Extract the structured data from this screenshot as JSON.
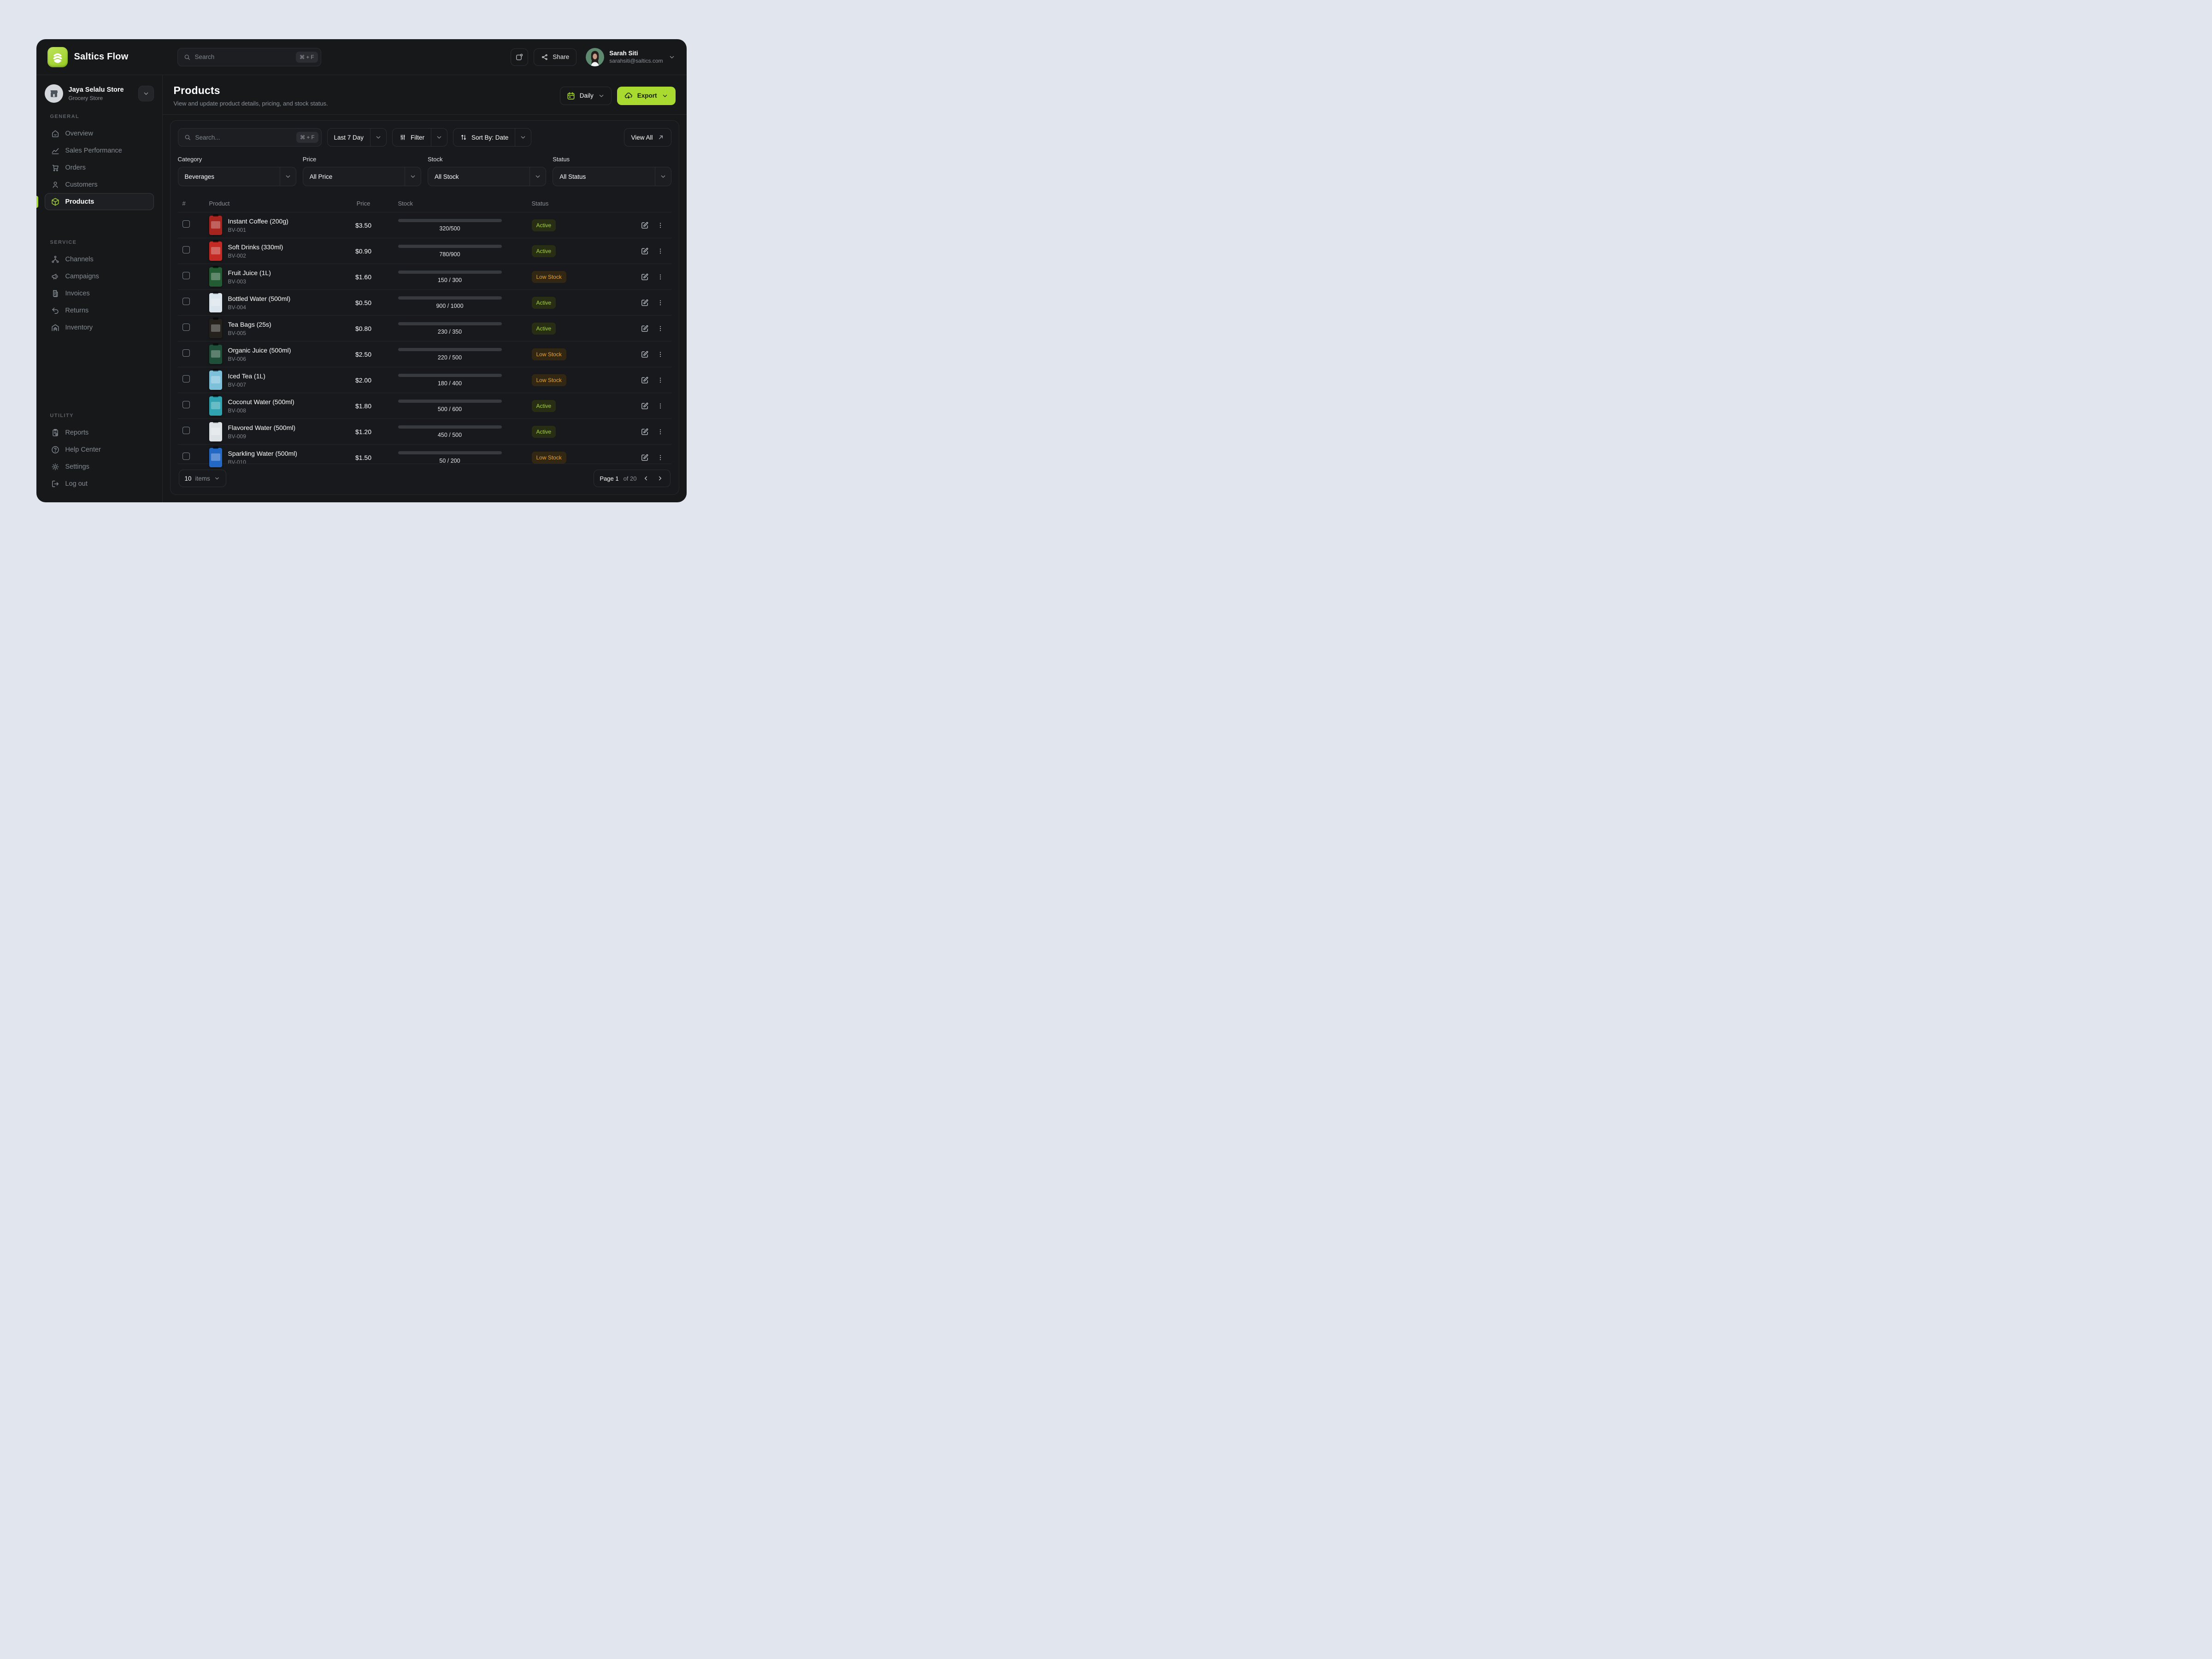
{
  "app": {
    "name": "Saltics Flow"
  },
  "topbar": {
    "search": {
      "placeholder": "Search",
      "shortcut": "⌘ + F"
    },
    "share_label": "Share",
    "user": {
      "name": "Sarah Siti",
      "email": "sarahsiti@saltics.com"
    }
  },
  "sidebar": {
    "store": {
      "name": "Jaya Selalu Store",
      "type": "Grocery Store"
    },
    "sections": [
      {
        "label": "GENERAL",
        "items": [
          {
            "label": "Overview",
            "icon": "home"
          },
          {
            "label": "Sales Performance",
            "icon": "chart"
          },
          {
            "label": "Orders",
            "icon": "cart"
          },
          {
            "label": "Customers",
            "icon": "users"
          },
          {
            "label": "Products",
            "icon": "cube",
            "active": true
          }
        ]
      },
      {
        "label": "SERVICE",
        "items": [
          {
            "label": "Channels",
            "icon": "network"
          },
          {
            "label": "Campaigns",
            "icon": "megaphone"
          },
          {
            "label": "Invoices",
            "icon": "receipt"
          },
          {
            "label": "Returns",
            "icon": "undo"
          },
          {
            "label": "Inventory",
            "icon": "warehouse"
          }
        ]
      },
      {
        "label": "UTILITY",
        "items": [
          {
            "label": "Reports",
            "icon": "clipboard"
          },
          {
            "label": "Help Center",
            "icon": "help"
          },
          {
            "label": "Settings",
            "icon": "gear"
          },
          {
            "label": "Log out",
            "icon": "logout"
          }
        ]
      }
    ]
  },
  "page": {
    "title": "Products",
    "subtitle": "View and update product details, pricing, and stock status.",
    "period_label": "Daily",
    "export_label": "Export"
  },
  "filters": {
    "search": {
      "placeholder": "Search...",
      "shortcut": "⌘ + F"
    },
    "date_range_label": "Last 7 Day",
    "filter_label": "Filter",
    "sort_label": "Sort By: Date",
    "view_all_label": "View All",
    "selects": [
      {
        "label": "Category",
        "value": "Beverages"
      },
      {
        "label": "Price",
        "value": "All Price"
      },
      {
        "label": "Stock",
        "value": "All Stock"
      },
      {
        "label": "Status",
        "value": "All Status"
      }
    ]
  },
  "table": {
    "columns": [
      "#",
      "Product",
      "Price",
      "Stock",
      "Status"
    ],
    "rows": [
      {
        "name": "Instant Coffee (200g)",
        "sku": "BV-001",
        "price": "$3.50",
        "stock_text": "320/500",
        "stock_pct": 64,
        "bar": "green",
        "status": "Active",
        "thumb_color": "#a8251f"
      },
      {
        "name": "Soft Drinks (330ml)",
        "sku": "BV-002",
        "price": "$0.90",
        "stock_text": "780/900",
        "stock_pct": 87,
        "bar": "green",
        "status": "Active",
        "thumb_color": "#c22a23"
      },
      {
        "name": "Fruit Juice (1L)",
        "sku": "BV-003",
        "price": "$1.60",
        "stock_text": "150 / 300",
        "stock_pct": 50,
        "bar": "orange",
        "status": "Low Stock",
        "thumb_color": "#235c33"
      },
      {
        "name": "Bottled Water (500ml)",
        "sku": "BV-004",
        "price": "$0.50",
        "stock_text": "900 / 1000",
        "stock_pct": 90,
        "bar": "green",
        "status": "Active",
        "thumb_color": "#d9e4ec"
      },
      {
        "name": "Tea Bags (25s)",
        "sku": "BV-005",
        "price": "$0.80",
        "stock_text": "230 / 350",
        "stock_pct": 66,
        "bar": "green",
        "status": "Active",
        "thumb_color": "#25221e"
      },
      {
        "name": "Organic Juice (500ml)",
        "sku": "BV-006",
        "price": "$2.50",
        "stock_text": "220 / 500",
        "stock_pct": 44,
        "bar": "orange",
        "status": "Low Stock",
        "thumb_color": "#1f4f38"
      },
      {
        "name": "Iced Tea (1L)",
        "sku": "BV-007",
        "price": "$2.00",
        "stock_text": "180 / 400",
        "stock_pct": 45,
        "bar": "orange",
        "status": "Low Stock",
        "thumb_color": "#7cc0da"
      },
      {
        "name": "Coconut Water (500ml)",
        "sku": "BV-008",
        "price": "$1.80",
        "stock_text": "500 / 600",
        "stock_pct": 83,
        "bar": "green",
        "status": "Active",
        "thumb_color": "#2fa3b0"
      },
      {
        "name": "Flavored Water (500ml)",
        "sku": "BV-009",
        "price": "$1.20",
        "stock_text": "450 / 500",
        "stock_pct": 90,
        "bar": "green",
        "status": "Active",
        "thumb_color": "#dde2e7"
      },
      {
        "name": "Sparkling Water (500ml)",
        "sku": "BV-010",
        "price": "$1.50",
        "stock_text": "50 / 200",
        "stock_pct": 25,
        "bar": "red",
        "status": "Low Stock",
        "thumb_color": "#2468c6"
      }
    ]
  },
  "footer": {
    "items_count": "10",
    "items_unit": "items",
    "page_current": "Page 1",
    "page_total": "of 20"
  },
  "colors": {
    "accent": "#a8da2f",
    "bar_green": "#a2d838",
    "bar_orange": "#e6a43c",
    "bar_red": "#f04e52",
    "active_badge_text": "#a6d349",
    "low_badge_text": "#e6a43c"
  }
}
